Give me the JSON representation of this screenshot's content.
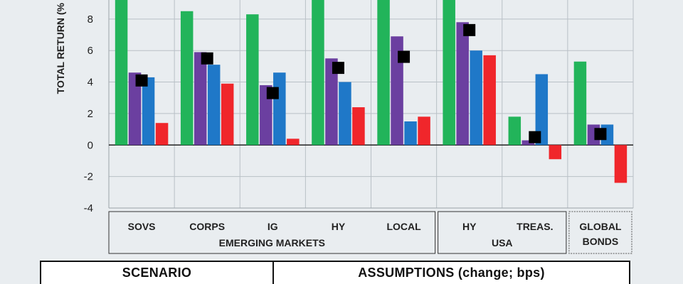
{
  "chart_data": {
    "type": "bar",
    "ylabel": "TOTAL RETURN (%",
    "ylim": [
      -4,
      9.3
    ],
    "yticks": [
      -4,
      -2,
      0,
      2,
      4,
      6,
      8
    ],
    "ytick_labels": [
      "-4",
      "-2",
      "0",
      "2",
      "4",
      "6",
      "8"
    ],
    "grid": true,
    "categories": [
      "SOVS",
      "CORPS",
      "IG",
      "HY",
      "LOCAL",
      "HY",
      "TREAS.",
      "GLOBAL BONDS"
    ],
    "category_lines": [
      [
        "SOVS"
      ],
      [
        "CORPS"
      ],
      [
        "IG"
      ],
      [
        "HY"
      ],
      [
        "LOCAL"
      ],
      [
        "HY"
      ],
      [
        "TREAS."
      ],
      [
        "GLOBAL",
        "BONDS"
      ]
    ],
    "groups": [
      {
        "label": "EMERGING MARKETS",
        "members": [
          0,
          1,
          2,
          3,
          4
        ]
      },
      {
        "label": "USA",
        "members": [
          5,
          6
        ]
      },
      {
        "label": "",
        "members": [
          7
        ]
      }
    ],
    "series": [
      {
        "color": "#22b45a",
        "values": [
          9.3,
          8.5,
          8.3,
          9.3,
          9.3,
          9.3,
          1.8,
          5.3
        ]
      },
      {
        "color": "#6b3fa0",
        "values": [
          4.6,
          5.9,
          3.8,
          5.5,
          6.9,
          7.8,
          0.3,
          1.3
        ]
      },
      {
        "color": "#1f78c8",
        "values": [
          4.3,
          5.1,
          4.6,
          4.0,
          1.5,
          6.0,
          4.5,
          1.3
        ]
      },
      {
        "color": "#f0262b",
        "values": [
          1.4,
          3.9,
          0.4,
          2.4,
          1.8,
          5.7,
          -0.9,
          -2.4
        ]
      }
    ],
    "markers": {
      "color": "#000000",
      "values": [
        4.1,
        5.5,
        3.3,
        4.9,
        5.6,
        7.3,
        0.5,
        0.7
      ]
    }
  },
  "table": {
    "scenario_label": "SCENARIO",
    "assumptions_label": "ASSUMPTIONS (change; bps)"
  }
}
